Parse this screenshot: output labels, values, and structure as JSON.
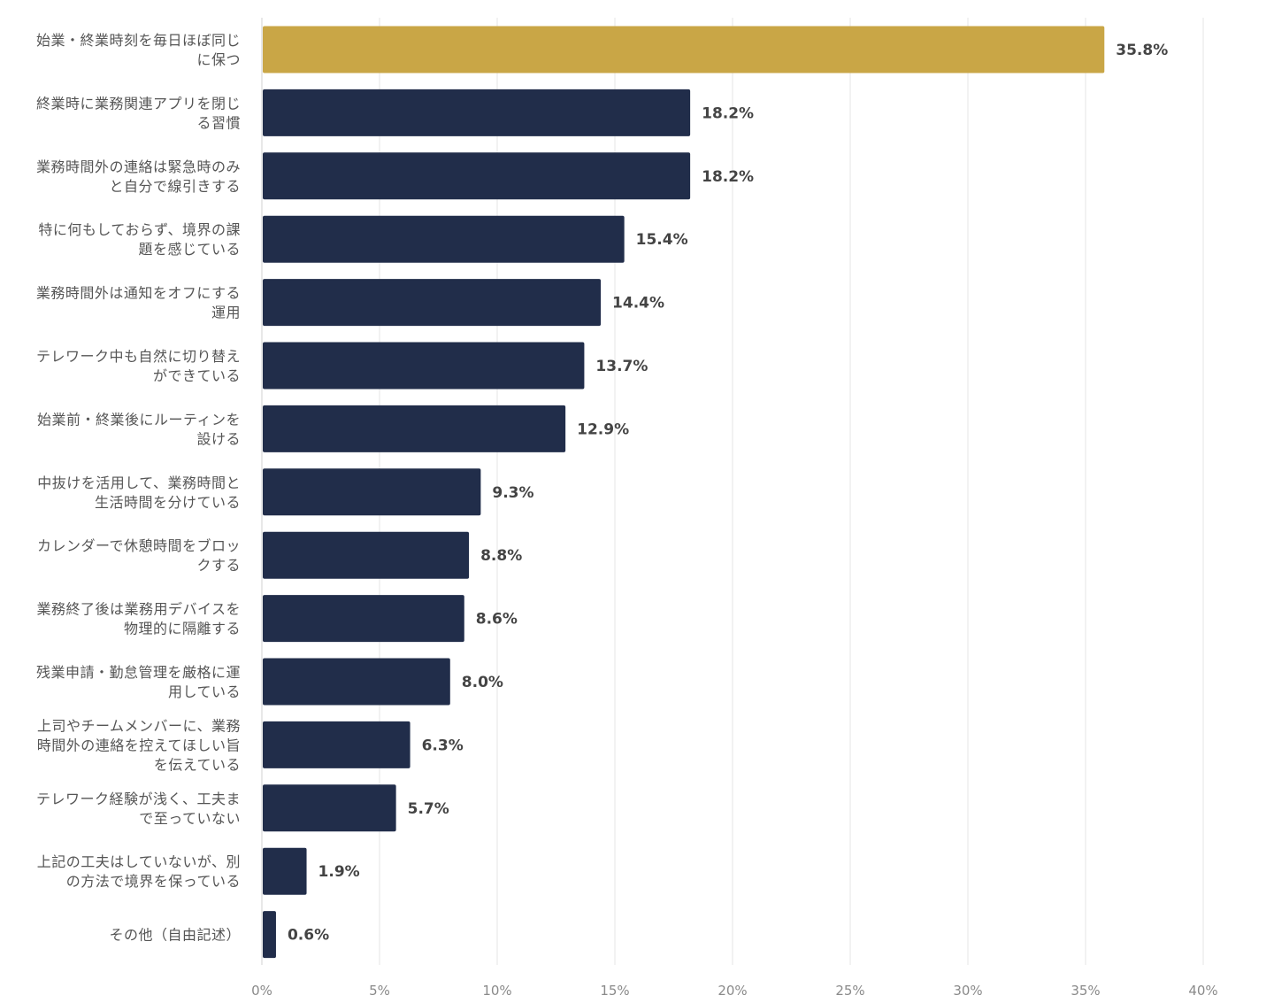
{
  "chart_data": {
    "type": "bar",
    "orientation": "horizontal",
    "title": "",
    "xlabel": "",
    "ylabel": "",
    "xlim": [
      0,
      40
    ],
    "x_ticks": [
      0,
      5,
      10,
      15,
      20,
      25,
      30,
      35,
      40
    ],
    "x_tick_labels": [
      "0%",
      "5%",
      "10%",
      "15%",
      "20%",
      "25%",
      "30%",
      "35%",
      "40%"
    ],
    "grid": true,
    "legend": "none",
    "colors": {
      "highlight": "#C9A646",
      "default": "#212D4A"
    },
    "categories": [
      [
        "始業・終業時刻を毎日ほぼ同じ",
        "に保つ"
      ],
      [
        "終業時に業務関連アプリを閉じ",
        "る習慣"
      ],
      [
        "業務時間外の連絡は緊急時のみ",
        "と自分で線引きする"
      ],
      [
        "特に何もしておらず、境界の課",
        "題を感じている"
      ],
      [
        "業務時間外は通知をオフにする",
        "運用"
      ],
      [
        "テレワーク中も自然に切り替え",
        "ができている"
      ],
      [
        "始業前・終業後にルーティンを",
        "設ける"
      ],
      [
        "中抜けを活用して、業務時間と",
        "生活時間を分けている"
      ],
      [
        "カレンダーで休憩時間をブロッ",
        "クする"
      ],
      [
        "業務終了後は業務用デバイスを",
        "物理的に隔離する"
      ],
      [
        "残業申請・勤怠管理を厳格に運",
        "用している"
      ],
      [
        "上司やチームメンバーに、業務",
        "時間外の連絡を控えてほしい旨",
        "を伝えている"
      ],
      [
        "テレワーク経験が浅く、工夫ま",
        "で至っていない"
      ],
      [
        "上記の工夫はしていないが、別",
        "の方法で境界を保っている"
      ],
      [
        "その他（自由記述）"
      ]
    ],
    "values": [
      35.8,
      18.2,
      18.2,
      15.4,
      14.4,
      13.7,
      12.9,
      9.3,
      8.8,
      8.6,
      8.0,
      6.3,
      5.7,
      1.9,
      0.6
    ],
    "value_labels": [
      "35.8%",
      "18.2%",
      "18.2%",
      "15.4%",
      "14.4%",
      "13.7%",
      "12.9%",
      "9.3%",
      "8.8%",
      "8.6%",
      "8.0%",
      "6.3%",
      "5.7%",
      "1.9%",
      "0.6%"
    ],
    "highlight_index": 0
  }
}
